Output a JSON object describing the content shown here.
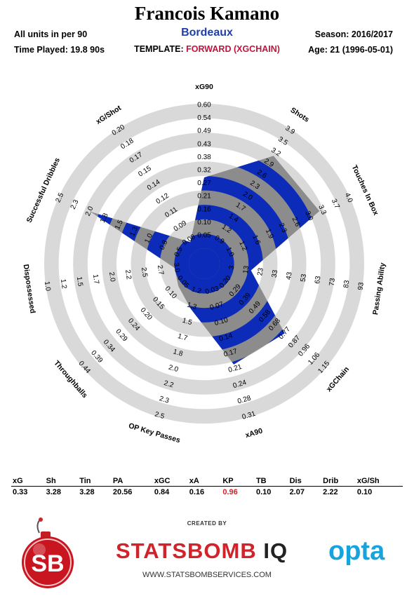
{
  "header": {
    "player": "Francois Kamano",
    "team": "Bordeaux",
    "units_note": "All units in per 90",
    "time_played": "Time Played: 19.8 90s",
    "template_label": "TEMPLATE:",
    "template_name": "FORWARD (XGCHAIN)",
    "season": "Season: 2016/2017",
    "age": "Age: 21 (1996-05-01)"
  },
  "colors": {
    "team_blue": "#1f3fa8",
    "template_red": "#c0143c",
    "radar_blue": "#0b2bb8",
    "radar_gray": "#8c8c8c",
    "ring_gray": "#d9d9d9",
    "brand_red": "#d2232a",
    "opta_blue": "#1aa3db"
  },
  "chart_data": {
    "type": "radar",
    "axes": [
      {
        "name": "xG90",
        "ticks": [
          "0.05",
          "0.10",
          "0.16",
          "0.21",
          "0.27",
          "0.32",
          "0.38",
          "0.43",
          "0.49",
          "0.54",
          "0.60"
        ],
        "value": 0.33
      },
      {
        "name": "Shots",
        "ticks": [
          "0.9",
          "1.2",
          "1.4",
          "1.7",
          "2.0",
          "2.3",
          "2.6",
          "2.9",
          "3.2",
          "3.5",
          "3.9"
        ],
        "value": 3.28
      },
      {
        "name": "Touches In Box",
        "ticks": [
          "1.0",
          "1.2",
          "1.6",
          "1.9",
          "2.3",
          "2.6",
          "3.0",
          "3.3",
          "3.7",
          "4.0"
        ],
        "value": 3.28
      },
      {
        "name": "Passing Ability",
        "ticks": [
          "3",
          "13",
          "23",
          "33",
          "43",
          "53",
          "63",
          "73",
          "83",
          "93"
        ],
        "value": 20.56
      },
      {
        "name": "xGChain",
        "ticks": [
          "0.20",
          "0.29",
          "0.39",
          "0.49",
          "0.58",
          "0.68",
          "0.77",
          "0.87",
          "0.96",
          "1.06",
          "1.15"
        ],
        "value": 0.84
      },
      {
        "name": "xA90",
        "ticks": [
          "0.03",
          "0.07",
          "0.10",
          "0.14",
          "0.17",
          "0.21",
          "0.24",
          "0.28",
          "0.31"
        ],
        "value": 0.16
      },
      {
        "name": "OP Key Passes",
        "ticks": [
          "1.2",
          "1.3",
          "1.5",
          "1.7",
          "1.8",
          "2.0",
          "2.2",
          "2.3",
          "2.5"
        ],
        "value": 0.96
      },
      {
        "name": "Throughballs",
        "ticks": [
          "0.05",
          "0.10",
          "0.15",
          "0.20",
          "0.24",
          "0.29",
          "0.34",
          "0.39",
          "0.44"
        ],
        "value": 0.1
      },
      {
        "name": "Dispossessed",
        "ticks": [
          "3.0",
          "2.7",
          "2.5",
          "2.2",
          "2.0",
          "1.7",
          "1.5",
          "1.2",
          "1.0"
        ],
        "value": 2.07
      },
      {
        "name": "Successful Dribbles",
        "ticks": [
          "0.5",
          "0.8",
          "1.0",
          "1.3",
          "1.5",
          "1.8",
          "2.0",
          "2.3",
          "2.5"
        ],
        "value": 2.22
      },
      {
        "name": "xG/Shot",
        "ticks": [
          "0.08",
          "0.09",
          "0.11",
          "0.12",
          "0.14",
          "0.15",
          "0.17",
          "0.18",
          "0.20"
        ],
        "value": 0.1
      }
    ],
    "polygon_levels": [
      0.49,
      0.78,
      0.77,
      0.22,
      0.63,
      0.62,
      0.22,
      0.13,
      0.1,
      0.76,
      0.07
    ]
  },
  "stats": {
    "headers": [
      "xG",
      "Sh",
      "Tin",
      "PA",
      "xGC",
      "xA",
      "KP",
      "TB",
      "Dis",
      "Drib",
      "xG/Sh"
    ],
    "values": [
      "0.33",
      "3.28",
      "3.28",
      "20.56",
      "0.84",
      "0.16",
      "0.96",
      "0.10",
      "2.07",
      "2.22",
      "0.10"
    ],
    "highlight_index": 6
  },
  "footer": {
    "created_by": "CREATED BY",
    "brand_left": "STATSBOMB",
    "brand_right": "IQ",
    "website": "WWW.STATSBOMBSERVICES.COM",
    "logo_text": "SB",
    "opta": "opta"
  }
}
